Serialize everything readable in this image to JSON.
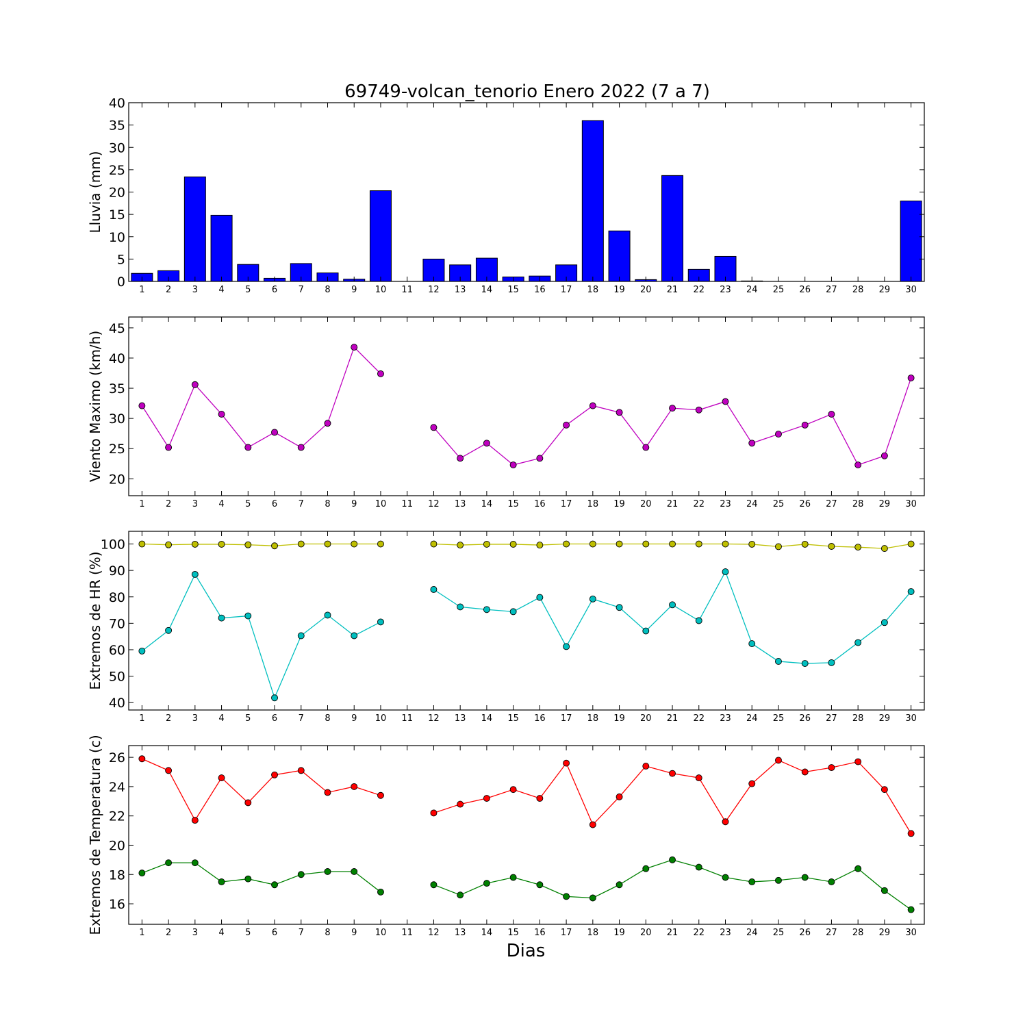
{
  "chart_data": {
    "title": "69749-volcan_tenorio Enero 2022  (7 a 7)",
    "xlabel": "Dias",
    "x_ticks": [
      "1",
      "2",
      "3",
      "4",
      "5",
      "6",
      "7",
      "8",
      "9",
      "10",
      "11",
      "12",
      "13",
      "14",
      "15",
      "16",
      "17",
      "18",
      "19",
      "20",
      "21",
      "22",
      "23",
      "24",
      "25",
      "26",
      "27",
      "28",
      "29",
      "30"
    ],
    "grid": false,
    "panels": [
      {
        "type": "bar",
        "ylabel": "Lluvia (mm)",
        "ylim": [
          0,
          40
        ],
        "yticks": [
          0,
          5,
          10,
          15,
          20,
          25,
          30,
          35,
          40
        ],
        "series": [
          {
            "color": "#0000ff",
            "values": [
              1.8,
              2.4,
              23.4,
              14.8,
              3.8,
              0.7,
              4.0,
              1.9,
              0.5,
              20.3,
              null,
              5.0,
              3.7,
              5.2,
              1.0,
              1.2,
              3.7,
              36.0,
              11.3,
              0.4,
              23.7,
              2.7,
              5.6,
              0.1,
              0.0,
              0.0,
              0.0,
              0.0,
              0.0,
              18.0
            ]
          }
        ]
      },
      {
        "type": "line",
        "ylabel": "Viento Maximo (km/h)",
        "ylim": [
          17.2,
          46.8
        ],
        "yticks": [
          20,
          25,
          30,
          35,
          40,
          45
        ],
        "series": [
          {
            "color": "#bf00bf",
            "values": [
              32.1,
              25.2,
              35.6,
              30.7,
              25.2,
              27.7,
              25.2,
              29.2,
              41.8,
              37.4,
              null,
              28.5,
              23.4,
              25.9,
              22.3,
              23.4,
              28.9,
              32.1,
              31.0,
              25.2,
              31.7,
              31.4,
              32.8,
              25.9,
              27.4,
              28.9,
              30.7,
              22.3,
              23.8,
              36.7
            ]
          }
        ]
      },
      {
        "type": "line",
        "ylabel": "Extremos de HR (%)",
        "ylim": [
          37.2,
          104.8
        ],
        "yticks": [
          40,
          50,
          60,
          70,
          80,
          90,
          100
        ],
        "series": [
          {
            "color": "#bfbf00",
            "values": [
              100,
              99.7,
              99.9,
              99.9,
              99.7,
              99.3,
              100,
              100,
              100,
              100,
              null,
              100,
              99.6,
              99.9,
              99.9,
              99.6,
              100,
              100,
              100,
              100,
              100,
              100,
              100,
              99.9,
              99.0,
              99.9,
              99.1,
              98.8,
              98.3,
              100
            ]
          },
          {
            "color": "#00bfbf",
            "values": [
              59.5,
              67.3,
              88.5,
              72.0,
              72.8,
              41.8,
              65.3,
              73.1,
              65.3,
              70.5,
              null,
              82.8,
              76.2,
              75.2,
              74.4,
              79.8,
              61.2,
              79.2,
              76.0,
              67.1,
              77.0,
              71.0,
              89.5,
              62.3,
              55.6,
              54.8,
              55.1,
              62.7,
              70.3,
              82.0
            ]
          }
        ]
      },
      {
        "type": "line",
        "ylabel": "Extremos de Temperatura (c)",
        "ylim": [
          14.6,
          26.8
        ],
        "yticks": [
          16,
          18,
          20,
          22,
          24,
          26
        ],
        "series": [
          {
            "color": "#ff0000",
            "values": [
              25.9,
              25.1,
              21.7,
              24.6,
              22.9,
              24.8,
              25.1,
              23.6,
              24.0,
              23.4,
              null,
              22.2,
              22.8,
              23.2,
              23.8,
              23.2,
              25.6,
              21.4,
              23.3,
              25.4,
              24.9,
              24.6,
              21.6,
              24.2,
              25.8,
              25.0,
              25.3,
              25.7,
              23.8,
              20.8
            ]
          },
          {
            "color": "#008000",
            "values": [
              18.1,
              18.8,
              18.8,
              17.5,
              17.7,
              17.3,
              18.0,
              18.2,
              18.2,
              16.8,
              null,
              17.3,
              16.6,
              17.4,
              17.8,
              17.3,
              16.5,
              16.4,
              17.3,
              18.4,
              19.0,
              18.5,
              17.8,
              17.5,
              17.6,
              17.8,
              17.5,
              18.4,
              16.9,
              15.6
            ]
          }
        ]
      }
    ]
  }
}
